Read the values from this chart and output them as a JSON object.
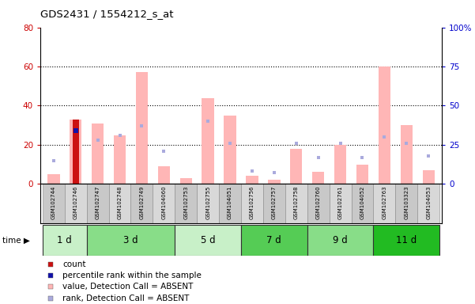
{
  "title": "GDS2431 / 1554212_s_at",
  "samples": [
    "GSM102744",
    "GSM102746",
    "GSM102747",
    "GSM102748",
    "GSM102749",
    "GSM104060",
    "GSM102753",
    "GSM102755",
    "GSM104051",
    "GSM102756",
    "GSM102757",
    "GSM102758",
    "GSM102760",
    "GSM102761",
    "GSM104052",
    "GSM102763",
    "GSM103323",
    "GSM104053"
  ],
  "groups": [
    {
      "label": "1 d",
      "indices": [
        0,
        1
      ],
      "color": "#c8f0c8"
    },
    {
      "label": "3 d",
      "indices": [
        2,
        3,
        4,
        5
      ],
      "color": "#88dd88"
    },
    {
      "label": "5 d",
      "indices": [
        6,
        7,
        8
      ],
      "color": "#c8f0c8"
    },
    {
      "label": "7 d",
      "indices": [
        9,
        10,
        11
      ],
      "color": "#55cc55"
    },
    {
      "label": "9 d",
      "indices": [
        12,
        13,
        14
      ],
      "color": "#88dd88"
    },
    {
      "label": "11 d",
      "indices": [
        15,
        16,
        17
      ],
      "color": "#22bb22"
    }
  ],
  "pink_bars": [
    5,
    33,
    31,
    25,
    57,
    9,
    3,
    44,
    35,
    4,
    2,
    18,
    6,
    20,
    10,
    60,
    30,
    7
  ],
  "blue_squares": [
    15,
    34,
    28,
    31,
    37,
    21,
    null,
    40,
    26,
    8,
    7,
    26,
    17,
    26,
    17,
    30,
    26,
    18
  ],
  "red_bar_index": 1,
  "red_bar_value": 33,
  "dark_blue_square_index": 1,
  "dark_blue_square_value": 34,
  "ylim_left": [
    0,
    80
  ],
  "ylim_right": [
    0,
    100
  ],
  "left_ticks": [
    0,
    20,
    40,
    60,
    80
  ],
  "right_ticks": [
    0,
    25,
    50,
    75,
    100
  ],
  "pink_color": "#ffb6b6",
  "blue_color": "#aaaadd",
  "red_color": "#cc1111",
  "dark_blue_color": "#1111aa",
  "tick_label_color_left": "#cc0000",
  "tick_label_color_right": "#0000cc"
}
